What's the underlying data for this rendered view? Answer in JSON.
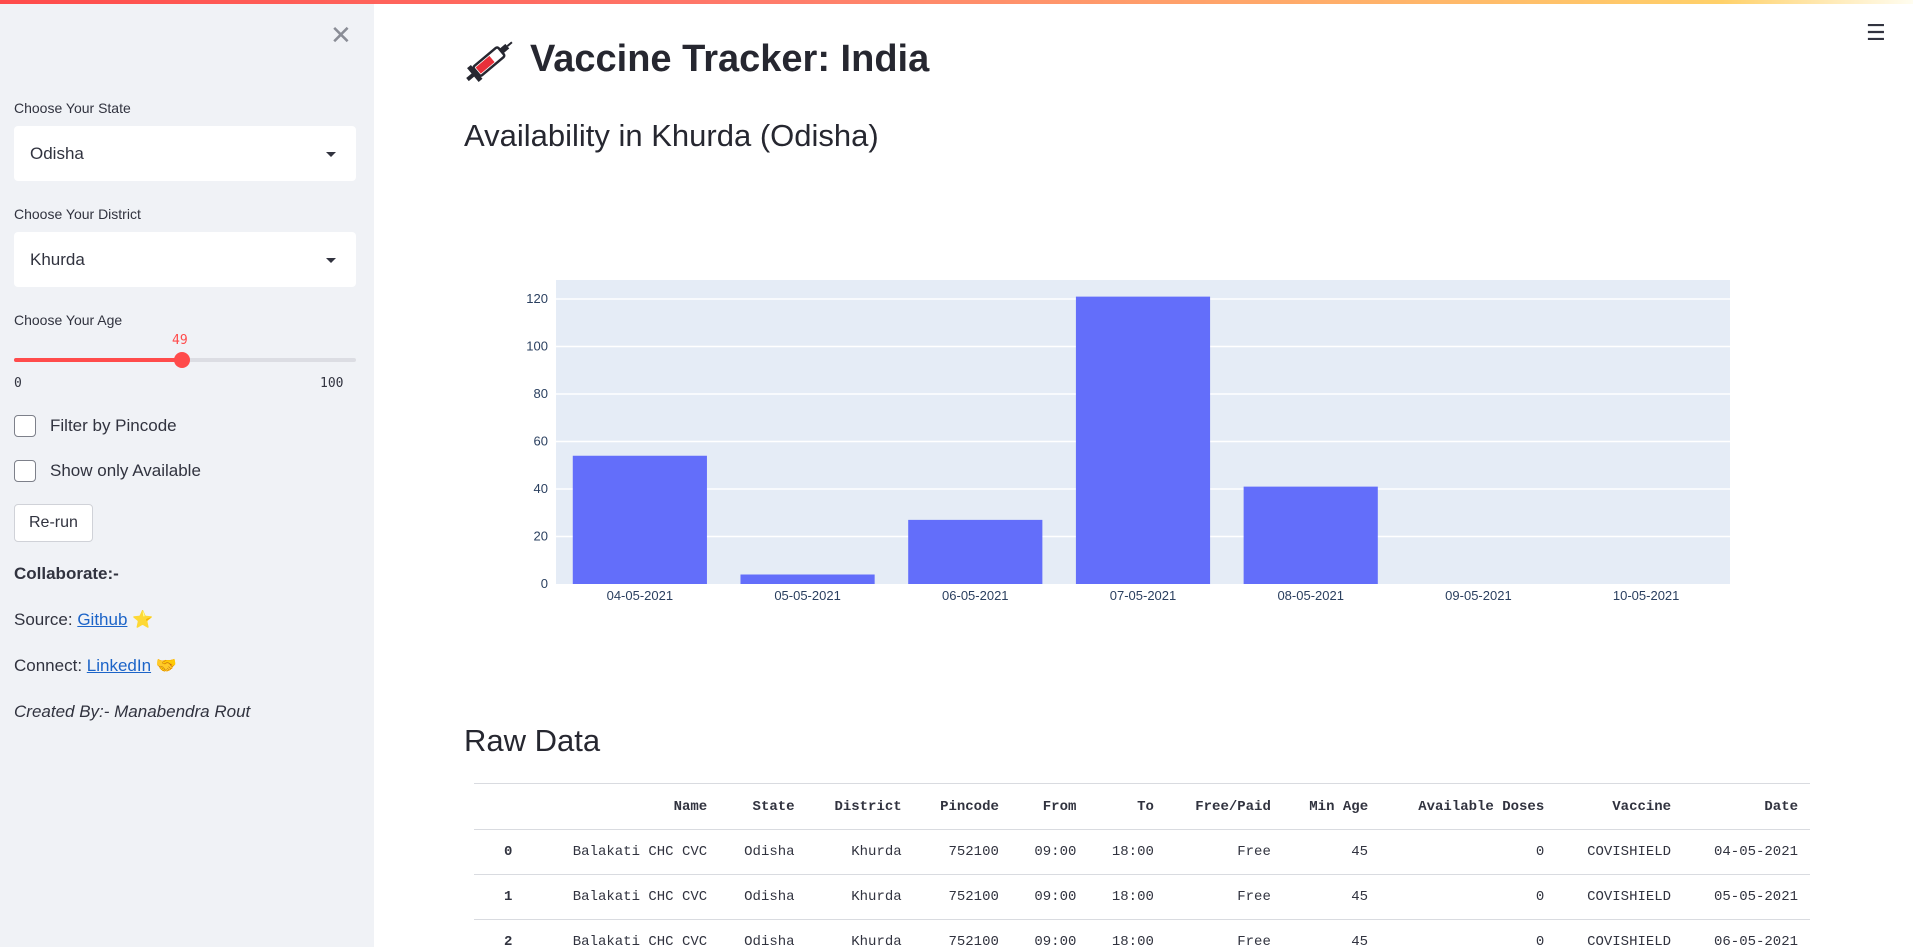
{
  "sidebar": {
    "state_label": "Choose Your State",
    "state_value": "Odisha",
    "district_label": "Choose Your District",
    "district_value": "Khurda",
    "age_label": "Choose Your Age",
    "age_value": 49,
    "age_min": 0,
    "age_max": 100,
    "age_value_text": "49",
    "age_min_text": "0",
    "age_max_text": "100",
    "filter_pincode_label": "Filter by Pincode",
    "show_available_label": "Show only Available",
    "rerun_label": "Re-run",
    "collaborate_label": "Collaborate:-",
    "source_prefix": "Source:",
    "source_link": "Github",
    "connect_prefix": "Connect:",
    "connect_link": "LinkedIn",
    "created_by": "Created By:- Manabendra Rout",
    "accent_color": "#ff4b4b"
  },
  "main": {
    "title": "Vaccine Tracker: India",
    "subtitle": "Availability in Khurda (Odisha)",
    "raw_title": "Raw Data"
  },
  "chart_data": {
    "type": "bar",
    "categories": [
      "04-05-2021",
      "05-05-2021",
      "06-05-2021",
      "07-05-2021",
      "08-05-2021",
      "09-05-2021",
      "10-05-2021"
    ],
    "values": [
      54,
      4,
      27,
      121,
      41,
      0,
      0
    ],
    "ylim": [
      0,
      128
    ],
    "yticks": [
      0,
      20,
      40,
      60,
      80,
      100,
      120
    ],
    "grid": true,
    "bar_color": "#636efa",
    "plot_bg": "#e5ecf6"
  },
  "table": {
    "columns": [
      "",
      "Name",
      "State",
      "District",
      "Pincode",
      "From",
      "To",
      "Free/Paid",
      "Min Age",
      "Available Doses",
      "Vaccine",
      "Date"
    ],
    "rows": [
      [
        "0",
        "Balakati CHC CVC",
        "Odisha",
        "Khurda",
        "752100",
        "09:00",
        "18:00",
        "Free",
        "45",
        "0",
        "COVISHIELD",
        "04-05-2021"
      ],
      [
        "1",
        "Balakati CHC CVC",
        "Odisha",
        "Khurda",
        "752100",
        "09:00",
        "18:00",
        "Free",
        "45",
        "0",
        "COVISHIELD",
        "05-05-2021"
      ],
      [
        "2",
        "Balakati CHC CVC",
        "Odisha",
        "Khurda",
        "752100",
        "09:00",
        "18:00",
        "Free",
        "45",
        "0",
        "COVISHIELD",
        "06-05-2021"
      ]
    ]
  }
}
